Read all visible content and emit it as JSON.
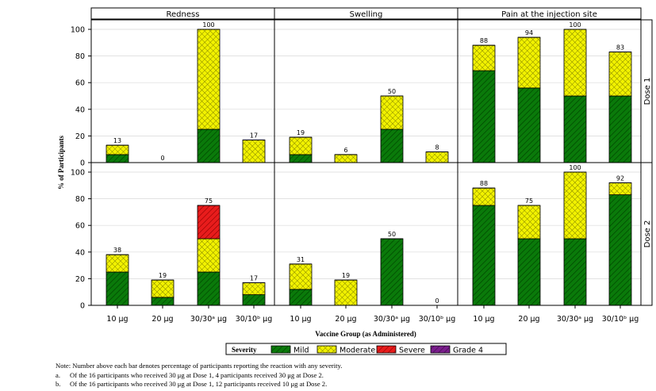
{
  "chart_data": {
    "type": "bar",
    "stacked": true,
    "ylabel": "% of Participants",
    "xlabel": "Vaccine Group (as Administered)",
    "ylim": [
      0,
      100
    ],
    "yticks": [
      0,
      20,
      40,
      60,
      80,
      100
    ],
    "grid": true,
    "categories": [
      "10 μg",
      "20 μg",
      "30/30ᵃ μg",
      "30/10ᵇ μg"
    ],
    "columns": [
      "Redness",
      "Swelling",
      "Pain at the injection site"
    ],
    "rows": [
      "Dose 1",
      "Dose 2"
    ],
    "legend": {
      "title": "Severity",
      "position": "bottom",
      "entries": [
        {
          "name": "Mild",
          "color": "#0a7a0a",
          "pattern": "diagonal-hatch"
        },
        {
          "name": "Moderate",
          "color": "#f2f200",
          "pattern": "cross-hatch"
        },
        {
          "name": "Severe",
          "color": "#e81c1c",
          "pattern": "diagonal-hatch"
        },
        {
          "name": "Grade 4",
          "color": "#7a1d8c",
          "pattern": "diagonal-hatch"
        }
      ]
    },
    "panels": [
      {
        "column": "Redness",
        "row": "Dose 1",
        "bars": [
          {
            "mild": 6,
            "moderate": 7,
            "severe": 0,
            "total_label": "13"
          },
          {
            "mild": 0,
            "moderate": 0,
            "severe": 0,
            "total_label": "0"
          },
          {
            "mild": 25,
            "moderate": 75,
            "severe": 0,
            "total_label": "100"
          },
          {
            "mild": 0,
            "moderate": 17,
            "severe": 0,
            "total_label": "17"
          }
        ]
      },
      {
        "column": "Swelling",
        "row": "Dose 1",
        "bars": [
          {
            "mild": 6,
            "moderate": 13,
            "severe": 0,
            "total_label": "19"
          },
          {
            "mild": 0,
            "moderate": 6,
            "severe": 0,
            "total_label": "6"
          },
          {
            "mild": 25,
            "moderate": 25,
            "severe": 0,
            "total_label": "50"
          },
          {
            "mild": 0,
            "moderate": 8,
            "severe": 0,
            "total_label": "8"
          }
        ]
      },
      {
        "column": "Pain at the injection site",
        "row": "Dose 1",
        "bars": [
          {
            "mild": 69,
            "moderate": 19,
            "severe": 0,
            "total_label": "88"
          },
          {
            "mild": 56,
            "moderate": 38,
            "severe": 0,
            "total_label": "94"
          },
          {
            "mild": 50,
            "moderate": 50,
            "severe": 0,
            "total_label": "100"
          },
          {
            "mild": 50,
            "moderate": 33,
            "severe": 0,
            "total_label": "83"
          }
        ]
      },
      {
        "column": "Redness",
        "row": "Dose 2",
        "bars": [
          {
            "mild": 25,
            "moderate": 13,
            "severe": 0,
            "total_label": "38"
          },
          {
            "mild": 6,
            "moderate": 13,
            "severe": 0,
            "total_label": "19"
          },
          {
            "mild": 25,
            "moderate": 25,
            "severe": 25,
            "total_label": "75"
          },
          {
            "mild": 8,
            "moderate": 9,
            "severe": 0,
            "total_label": "17"
          }
        ]
      },
      {
        "column": "Swelling",
        "row": "Dose 2",
        "bars": [
          {
            "mild": 12,
            "moderate": 19,
            "severe": 0,
            "total_label": "31"
          },
          {
            "mild": 0,
            "moderate": 19,
            "severe": 0,
            "total_label": "19"
          },
          {
            "mild": 50,
            "moderate": 0,
            "severe": 0,
            "total_label": "50"
          },
          {
            "mild": 0,
            "moderate": 0,
            "severe": 0,
            "total_label": "0"
          }
        ]
      },
      {
        "column": "Pain at the injection site",
        "row": "Dose 2",
        "bars": [
          {
            "mild": 75,
            "moderate": 13,
            "severe": 0,
            "total_label": "88"
          },
          {
            "mild": 50,
            "moderate": 25,
            "severe": 0,
            "total_label": "75"
          },
          {
            "mild": 50,
            "moderate": 50,
            "severe": 0,
            "total_label": "100"
          },
          {
            "mild": 83,
            "moderate": 9,
            "severe": 0,
            "total_label": "92"
          }
        ]
      }
    ]
  },
  "notes": {
    "main": "Note: Number above each bar denotes percentage of participants reporting the reaction with any severity.",
    "footnotes": [
      {
        "marker": "a.",
        "text": "Of the 16 participants who received 30 μg at Dose 1, 4 participants received 30 μg at Dose 2."
      },
      {
        "marker": "b.",
        "text": "Of the 16 participants who received 30 μg at Dose 1, 12 participants received 10 μg at Dose 2."
      }
    ]
  }
}
